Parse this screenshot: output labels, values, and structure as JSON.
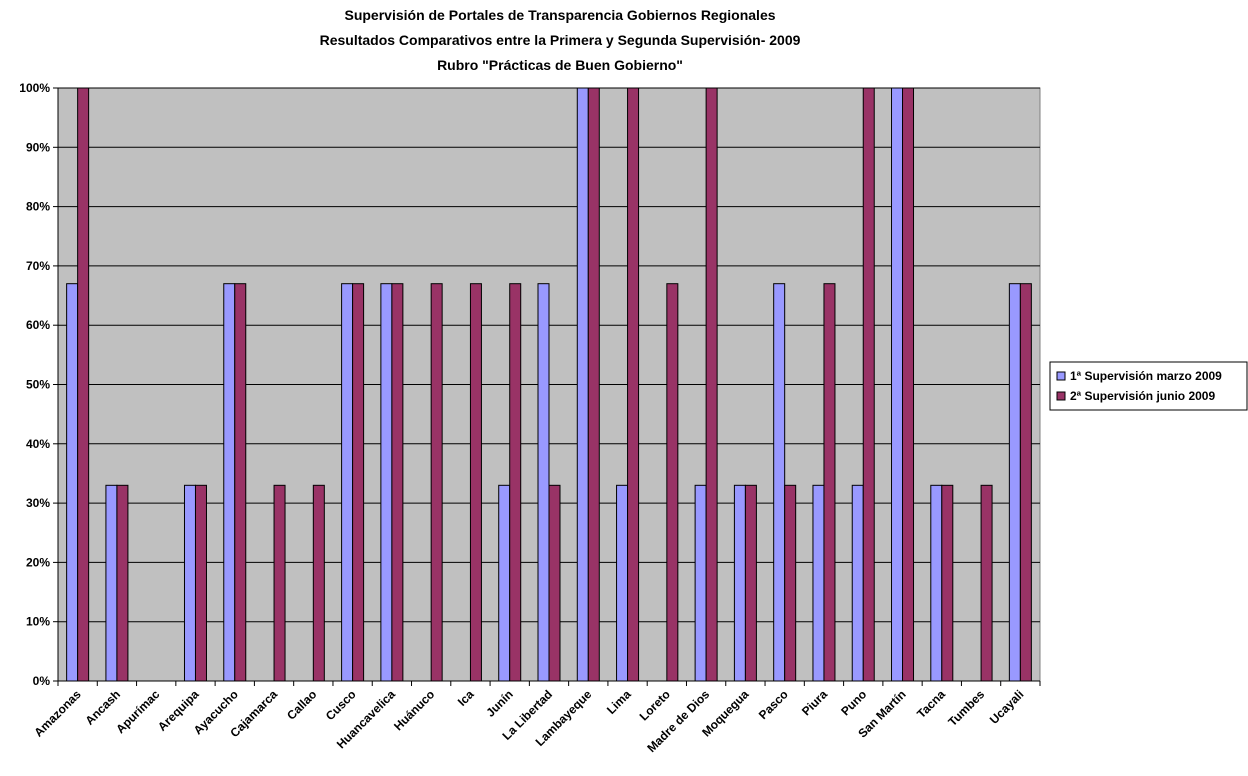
{
  "chart_data": {
    "type": "bar",
    "title": [
      "Supervisión de Portales de Transparencia Gobiernos Regionales",
      "Resultados Comparativos entre la Primera y Segunda Supervisión- 2009",
      "Rubro \"Prácticas de Buen Gobierno\""
    ],
    "categories": [
      "Amazonas",
      "Ancash",
      "Apurímac",
      "Arequipa",
      "Ayacucho",
      "Cajamarca",
      "Callao",
      "Cusco",
      "Huancavelica",
      "Huánuco",
      "Ica",
      "Junín",
      "La Libertad",
      "Lambayeque",
      "Lima",
      "Loreto",
      "Madre de Dios",
      "Moquegua",
      "Pasco",
      "Piura",
      "Puno",
      "San Martín",
      "Tacna",
      "Tumbes",
      "Ucayali"
    ],
    "series": [
      {
        "name": "1ª Supervisión marzo 2009",
        "color": "#9999ff",
        "values": [
          67,
          33,
          0,
          33,
          67,
          0,
          0,
          67,
          67,
          0,
          0,
          33,
          67,
          100,
          33,
          0,
          33,
          33,
          67,
          33,
          33,
          100,
          33,
          0,
          67
        ]
      },
      {
        "name": "2ª Supervisión junio 2009",
        "color": "#993366",
        "values": [
          100,
          33,
          0,
          33,
          67,
          33,
          33,
          67,
          67,
          67,
          67,
          67,
          33,
          100,
          100,
          67,
          100,
          33,
          33,
          67,
          100,
          100,
          33,
          33,
          67
        ]
      }
    ],
    "ylim": [
      0,
      100
    ],
    "yticks": [
      {
        "value": 0,
        "label": "0%"
      },
      {
        "value": 10,
        "label": "10%"
      },
      {
        "value": 20,
        "label": "20%"
      },
      {
        "value": 30,
        "label": "30%"
      },
      {
        "value": 40,
        "label": "40%"
      },
      {
        "value": 50,
        "label": "50%"
      },
      {
        "value": 60,
        "label": "60%"
      },
      {
        "value": 70,
        "label": "70%"
      },
      {
        "value": 80,
        "label": "80%"
      },
      {
        "value": 90,
        "label": "90%"
      },
      {
        "value": 100,
        "label": "100%"
      }
    ],
    "grid": true,
    "legend": "right",
    "plot_background": "#c0c0c0"
  }
}
